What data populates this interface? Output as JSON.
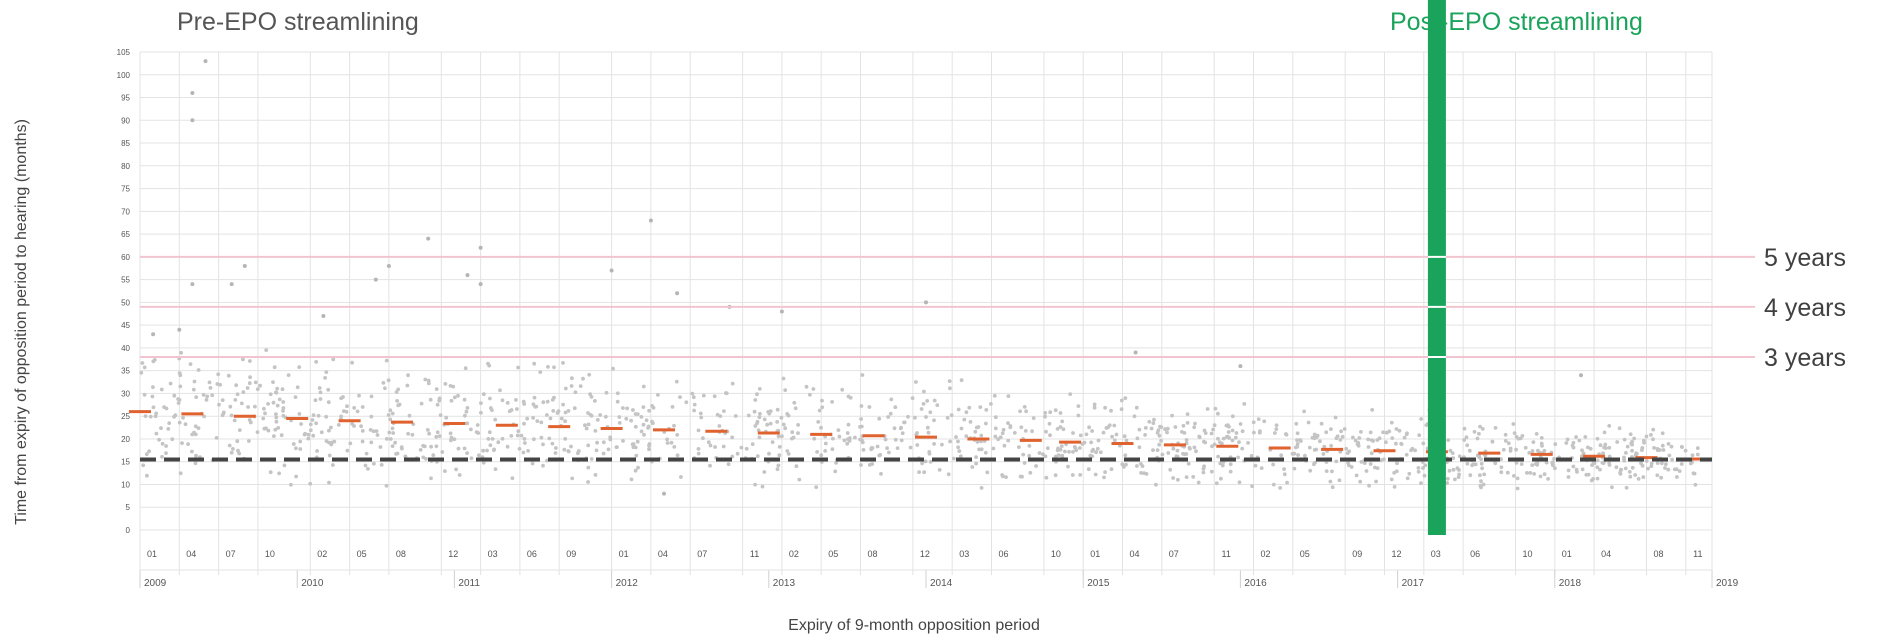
{
  "chart_data": {
    "type": "scatter",
    "title": "",
    "pre_label": "Pre-EPO streamlining",
    "post_label": "Post-EPO streamlining",
    "xlabel": "Expiry of 9-month opposition period",
    "ylabel": "Time from expiry of opposition period to hearing (months)",
    "ylim": [
      0,
      105
    ],
    "yticks": [
      0,
      5,
      10,
      15,
      20,
      25,
      30,
      35,
      40,
      45,
      50,
      55,
      60,
      65,
      70,
      75,
      80,
      85,
      90,
      95,
      100,
      105
    ],
    "xlim": [
      "2009-01",
      "2019-01"
    ],
    "month_ticks": [
      {
        "x": "2009-01",
        "label": "01"
      },
      {
        "x": "2009-04",
        "label": "04"
      },
      {
        "x": "2009-07",
        "label": "07"
      },
      {
        "x": "2009-10",
        "label": "10"
      },
      {
        "x": "2010-02",
        "label": "02"
      },
      {
        "x": "2010-05",
        "label": "05"
      },
      {
        "x": "2010-08",
        "label": "08"
      },
      {
        "x": "2010-12",
        "label": "12"
      },
      {
        "x": "2011-03",
        "label": "03"
      },
      {
        "x": "2011-06",
        "label": "06"
      },
      {
        "x": "2011-09",
        "label": "09"
      },
      {
        "x": "2012-01",
        "label": "01"
      },
      {
        "x": "2012-04",
        "label": "04"
      },
      {
        "x": "2012-07",
        "label": "07"
      },
      {
        "x": "2012-11",
        "label": "11"
      },
      {
        "x": "2013-02",
        "label": "02"
      },
      {
        "x": "2013-05",
        "label": "05"
      },
      {
        "x": "2013-08",
        "label": "08"
      },
      {
        "x": "2013-12",
        "label": "12"
      },
      {
        "x": "2014-03",
        "label": "03"
      },
      {
        "x": "2014-06",
        "label": "06"
      },
      {
        "x": "2014-10",
        "label": "10"
      },
      {
        "x": "2015-01",
        "label": "01"
      },
      {
        "x": "2015-04",
        "label": "04"
      },
      {
        "x": "2015-07",
        "label": "07"
      },
      {
        "x": "2015-11",
        "label": "11"
      },
      {
        "x": "2016-02",
        "label": "02"
      },
      {
        "x": "2016-05",
        "label": "05"
      },
      {
        "x": "2016-09",
        "label": "09"
      },
      {
        "x": "2016-12",
        "label": "12"
      },
      {
        "x": "2017-03",
        "label": "03"
      },
      {
        "x": "2017-06",
        "label": "06"
      },
      {
        "x": "2017-10",
        "label": "10"
      },
      {
        "x": "2018-01",
        "label": "01"
      },
      {
        "x": "2018-04",
        "label": "04"
      },
      {
        "x": "2018-08",
        "label": "08"
      },
      {
        "x": "2018-11",
        "label": "11"
      }
    ],
    "year_ticks": [
      {
        "x": "2009-01",
        "label": "2009"
      },
      {
        "x": "2010-01",
        "label": "2010"
      },
      {
        "x": "2011-01",
        "label": "2011"
      },
      {
        "x": "2012-01",
        "label": "2012"
      },
      {
        "x": "2013-01",
        "label": "2013"
      },
      {
        "x": "2014-01",
        "label": "2014"
      },
      {
        "x": "2015-01",
        "label": "2015"
      },
      {
        "x": "2016-01",
        "label": "2016"
      },
      {
        "x": "2017-01",
        "label": "2017"
      },
      {
        "x": "2018-01",
        "label": "2018"
      },
      {
        "x": "2019-01",
        "label": "2019"
      }
    ],
    "reference_lines": [
      {
        "y": 60,
        "label": "5 years",
        "color": "#f2c4cf"
      },
      {
        "y": 49,
        "label": "4 years",
        "color": "#f2c4cf"
      },
      {
        "y": 38,
        "label": "3 years",
        "color": "#f2c4cf"
      }
    ],
    "target_line": {
      "y": 15.5,
      "color": "#444444",
      "style": "dashed"
    },
    "streamlining_marker": {
      "x": "2017-04",
      "color": "#1aa35a"
    },
    "median_series": {
      "name": "",
      "color": "#e0622f",
      "points": [
        {
          "x": "2009-01",
          "y": 26
        },
        {
          "x": "2009-05",
          "y": 25.5
        },
        {
          "x": "2009-09",
          "y": 25
        },
        {
          "x": "2010-01",
          "y": 24.5
        },
        {
          "x": "2010-05",
          "y": 24
        },
        {
          "x": "2010-09",
          "y": 23.7
        },
        {
          "x": "2011-01",
          "y": 23.4
        },
        {
          "x": "2011-05",
          "y": 23
        },
        {
          "x": "2011-09",
          "y": 22.7
        },
        {
          "x": "2012-01",
          "y": 22.3
        },
        {
          "x": "2012-05",
          "y": 22
        },
        {
          "x": "2012-09",
          "y": 21.7
        },
        {
          "x": "2013-01",
          "y": 21.3
        },
        {
          "x": "2013-05",
          "y": 21
        },
        {
          "x": "2013-09",
          "y": 20.7
        },
        {
          "x": "2014-01",
          "y": 20.4
        },
        {
          "x": "2014-05",
          "y": 20
        },
        {
          "x": "2014-09",
          "y": 19.7
        },
        {
          "x": "2014-12",
          "y": 19.3
        },
        {
          "x": "2015-04",
          "y": 19
        },
        {
          "x": "2015-08",
          "y": 18.7
        },
        {
          "x": "2015-12",
          "y": 18.4
        },
        {
          "x": "2016-04",
          "y": 18
        },
        {
          "x": "2016-08",
          "y": 17.7
        },
        {
          "x": "2016-12",
          "y": 17.4
        },
        {
          "x": "2017-04",
          "y": 17.2
        },
        {
          "x": "2017-08",
          "y": 16.9
        },
        {
          "x": "2017-12",
          "y": 16.6
        },
        {
          "x": "2018-04",
          "y": 16.2
        },
        {
          "x": "2018-08",
          "y": 15.9
        },
        {
          "x": "2018-12",
          "y": 15.6
        }
      ]
    },
    "scatter_color": "#c4c4c4",
    "outliers": [
      {
        "x": "2009-06",
        "y": 103
      },
      {
        "x": "2009-05",
        "y": 96
      },
      {
        "x": "2009-05",
        "y": 90
      },
      {
        "x": "2009-05",
        "y": 54
      },
      {
        "x": "2009-09",
        "y": 58
      },
      {
        "x": "2009-08",
        "y": 54
      },
      {
        "x": "2010-08",
        "y": 58
      },
      {
        "x": "2010-07",
        "y": 55
      },
      {
        "x": "2010-11",
        "y": 64
      },
      {
        "x": "2011-03",
        "y": 62
      },
      {
        "x": "2011-02",
        "y": 56
      },
      {
        "x": "2011-03",
        "y": 54
      },
      {
        "x": "2012-04",
        "y": 68
      },
      {
        "x": "2012-01",
        "y": 57
      },
      {
        "x": "2012-06",
        "y": 52
      },
      {
        "x": "2014-01",
        "y": 50
      },
      {
        "x": "2012-05",
        "y": 8
      },
      {
        "x": "2009-04",
        "y": 44
      },
      {
        "x": "2009-02",
        "y": 43
      },
      {
        "x": "2010-03",
        "y": 47
      },
      {
        "x": "2013-02",
        "y": 48
      },
      {
        "x": "2012-10",
        "y": 49
      },
      {
        "x": "2015-05",
        "y": 39
      },
      {
        "x": "2016-01",
        "y": 36
      },
      {
        "x": "2017-04",
        "y": 33
      },
      {
        "x": "2018-03",
        "y": 34
      }
    ]
  }
}
